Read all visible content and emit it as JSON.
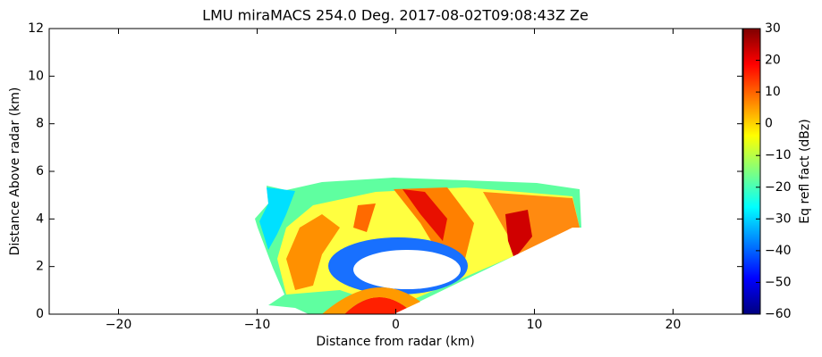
{
  "chart_data": {
    "type": "heatmap",
    "title": "LMU miraMACS 254.0 Deg. 2017-08-02T09:08:43Z  Ze",
    "x_label": "Distance from radar (km)",
    "y_label": "Distance Above radar  (km)",
    "xlim": [
      -25,
      25
    ],
    "xticks": [
      {
        "value": -20,
        "label": "−20"
      },
      {
        "value": -10,
        "label": "−10"
      },
      0,
      10,
      20
    ],
    "ylim": [
      0,
      12
    ],
    "yticks": [
      0,
      2,
      4,
      6,
      8,
      10,
      12
    ],
    "colorbar": {
      "label": "Eq refl fact (dBz)",
      "lim": [
        -60,
        30
      ],
      "ticks": [
        {
          "value": -60,
          "label": "−60"
        },
        {
          "value": -50,
          "label": "−50"
        },
        {
          "value": -40,
          "label": "−40"
        },
        {
          "value": -30,
          "label": "−30"
        },
        {
          "value": -20,
          "label": "−20"
        },
        {
          "value": -10,
          "label": "−10"
        },
        0,
        10,
        20,
        30
      ],
      "colors": [
        "#00007f",
        "#0000ff",
        "#007fff",
        "#00ffff",
        "#7fff7f",
        "#ffff00",
        "#ff7f00",
        "#ff0000",
        "#7f0000"
      ]
    }
  }
}
